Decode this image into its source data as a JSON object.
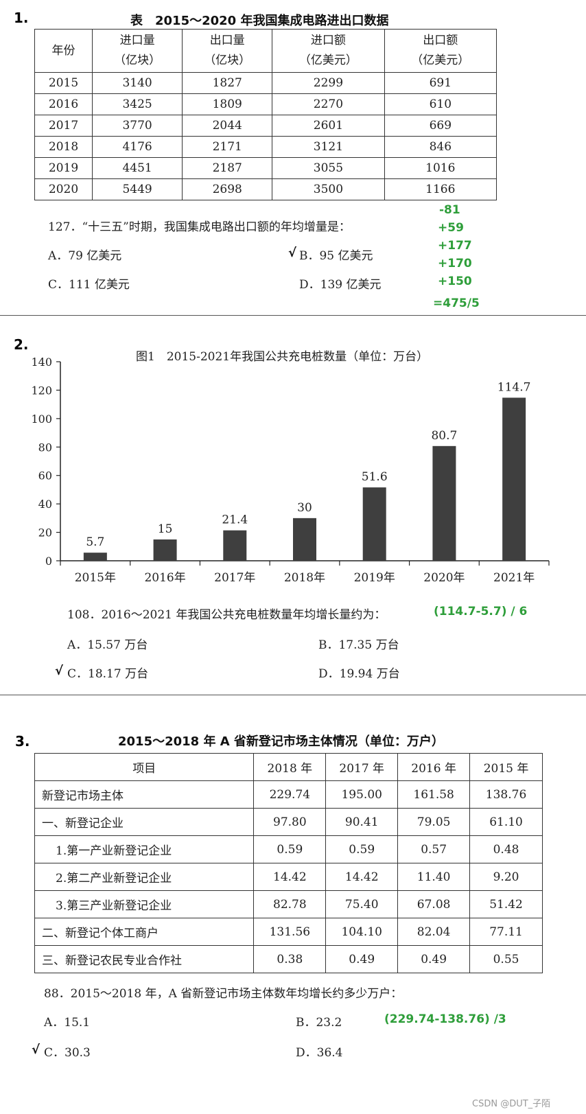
{
  "section1": {
    "number": "1.",
    "title": "表　2015～2020 年我国集成电路进出口数据",
    "header": [
      [
        "年份",
        ""
      ],
      [
        "进口量",
        "（亿块）"
      ],
      [
        "出口量",
        "（亿块）"
      ],
      [
        "进口额",
        "（亿美元）"
      ],
      [
        "出口额",
        "（亿美元）"
      ]
    ],
    "rows": [
      [
        "2015",
        "3140",
        "1827",
        "2299",
        "691"
      ],
      [
        "2016",
        "3425",
        "1809",
        "2270",
        "610"
      ],
      [
        "2017",
        "3770",
        "2044",
        "2601",
        "669"
      ],
      [
        "2018",
        "4176",
        "2171",
        "3121",
        "846"
      ],
      [
        "2019",
        "4451",
        "2187",
        "3055",
        "1016"
      ],
      [
        "2020",
        "5449",
        "2698",
        "3500",
        "1166"
      ]
    ],
    "question": "127．“十三五”时期，我国集成电路出口额的年均增量是：",
    "options": [
      "A．79 亿美元",
      "B．95 亿美元",
      "C．111 亿美元",
      "D．139 亿美元"
    ],
    "checkmark": "√",
    "notes": [
      "-81",
      "+59",
      "+177",
      "+170",
      "+150",
      "=475/5"
    ]
  },
  "section2": {
    "number": "2.",
    "question": "108．2016～2021 年我国公共充电桩数量年均增长量约为：",
    "formula": "(114.7-5.7) / 6",
    "options": [
      "A．15.57 万台",
      "B．17.35 万台",
      "C．18.17 万台",
      "D．19.94 万台"
    ],
    "checkmark": "√"
  },
  "chart_data": {
    "type": "bar",
    "title": "图1　2015-2021年我国公共充电桩数量（单位：万台）",
    "categories": [
      "2015年",
      "2016年",
      "2017年",
      "2018年",
      "2019年",
      "2020年",
      "2021年"
    ],
    "values": [
      5.7,
      15,
      21.4,
      30,
      51.6,
      80.7,
      114.7
    ],
    "value_labels": [
      "5.7",
      "15",
      "21.4",
      "30",
      "51.6",
      "80.7",
      "114.7"
    ],
    "ylim": [
      0,
      140
    ],
    "yticks": [
      "0",
      "20",
      "40",
      "60",
      "80",
      "100",
      "120",
      "140"
    ],
    "grid": false,
    "legend": "none",
    "bar_color": "#3f3f3f"
  },
  "section3": {
    "number": "3.",
    "title": "2015～2018 年 A 省新登记市场主体情况（单位：万户）",
    "header": [
      "项目",
      "2018 年",
      "2017 年",
      "2016 年",
      "2015 年"
    ],
    "rows": [
      [
        "新登记市场主体",
        "229.74",
        "195.00",
        "161.58",
        "138.76"
      ],
      [
        "一、新登记企业",
        "97.80",
        "90.41",
        "79.05",
        "61.10"
      ],
      [
        "1.第一产业新登记企业",
        "0.59",
        "0.59",
        "0.57",
        "0.48"
      ],
      [
        "2.第二产业新登记企业",
        "14.42",
        "14.42",
        "11.40",
        "9.20"
      ],
      [
        "3.第三产业新登记企业",
        "82.78",
        "75.40",
        "67.08",
        "51.42"
      ],
      [
        "二、新登记个体工商户",
        "131.56",
        "104.10",
        "82.04",
        "77.11"
      ],
      [
        "三、新登记农民专业合作社",
        "0.38",
        "0.49",
        "0.49",
        "0.55"
      ]
    ],
    "question": "88．2015～2018 年，A 省新登记市场主体数年均增长约多少万户：",
    "formula": "(229.74-138.76) /3",
    "options": [
      "A．15.1",
      "B．23.2",
      "C．30.3",
      "D．36.4"
    ],
    "checkmark": "√"
  },
  "watermark": "CSDN @DUT_子陌"
}
